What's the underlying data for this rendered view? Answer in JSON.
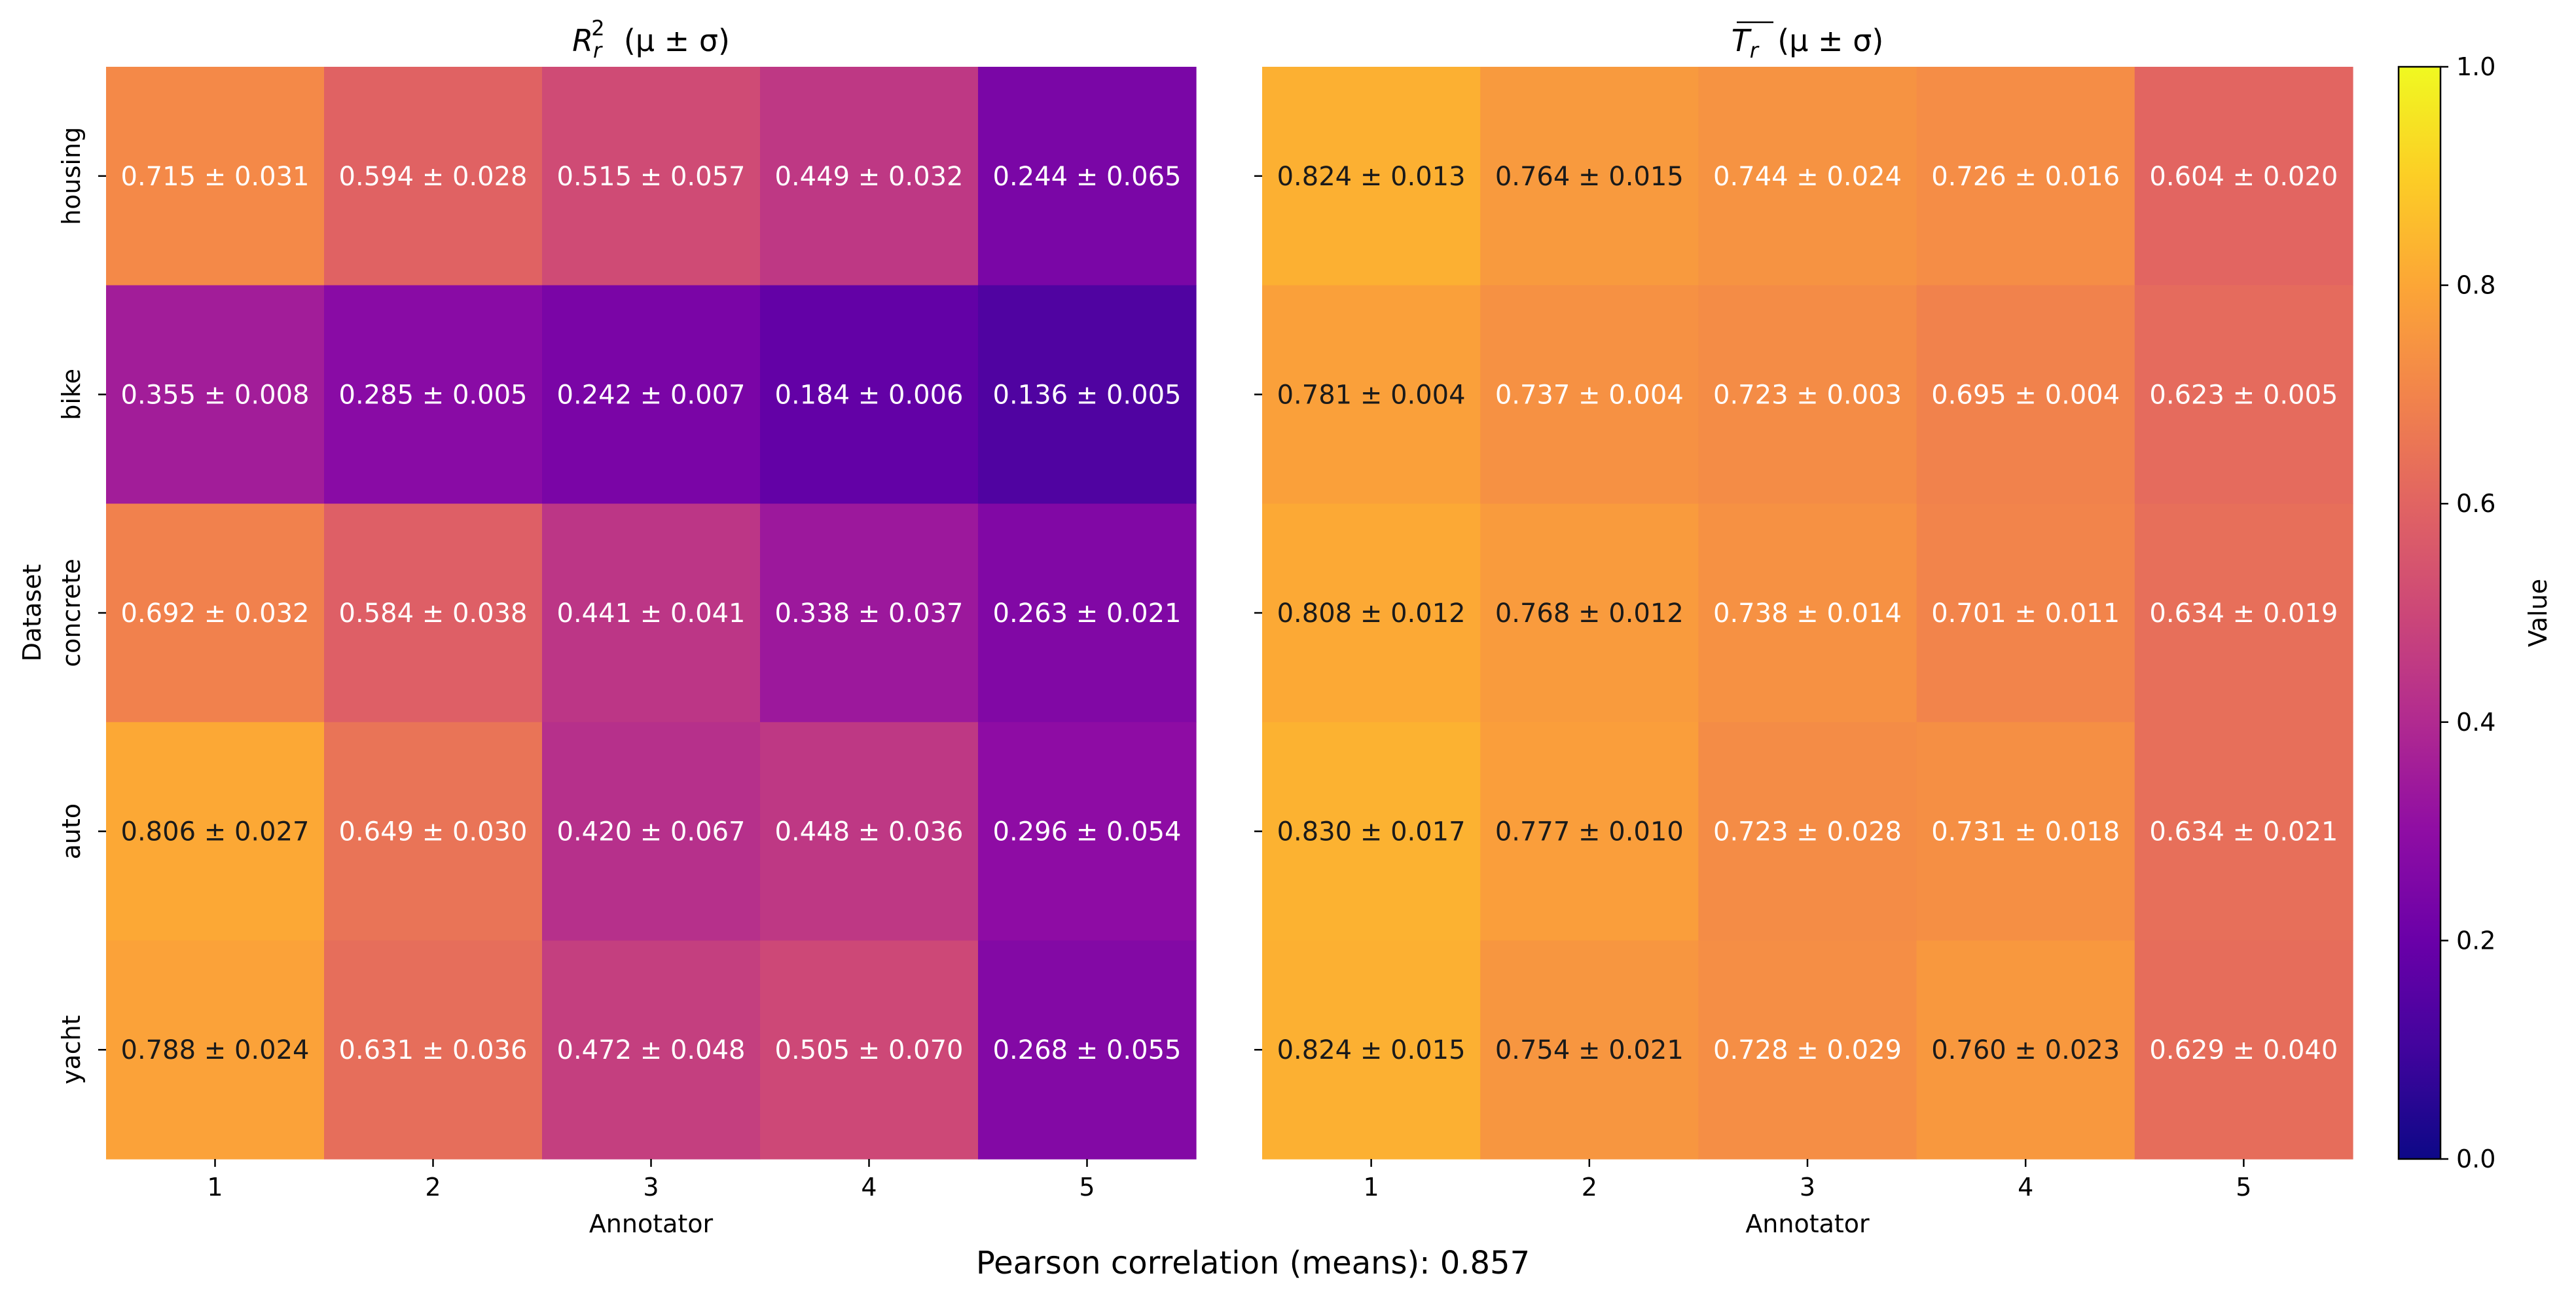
{
  "chart_data": [
    {
      "type": "heatmap",
      "title_main": "R",
      "title_sup": "2",
      "title_sub": "r",
      "title_suffix": "(μ ± σ)",
      "xlabel": "Annotator",
      "ylabel": "Dataset",
      "x_categories": [
        "1",
        "2",
        "3",
        "4",
        "5"
      ],
      "y_categories": [
        "housing",
        "bike",
        "concrete",
        "auto",
        "yacht"
      ],
      "means": [
        [
          0.715,
          0.594,
          0.515,
          0.449,
          0.244
        ],
        [
          0.355,
          0.285,
          0.242,
          0.184,
          0.136
        ],
        [
          0.692,
          0.584,
          0.441,
          0.338,
          0.263
        ],
        [
          0.806,
          0.649,
          0.42,
          0.448,
          0.296
        ],
        [
          0.788,
          0.631,
          0.472,
          0.505,
          0.268
        ]
      ],
      "labels": [
        [
          "0.715 ± 0.031",
          "0.594 ± 0.028",
          "0.515 ± 0.057",
          "0.449 ± 0.032",
          "0.244 ± 0.065"
        ],
        [
          "0.355 ± 0.008",
          "0.285 ± 0.005",
          "0.242 ± 0.007",
          "0.184 ± 0.006",
          "0.136 ± 0.005"
        ],
        [
          "0.692 ± 0.032",
          "0.584 ± 0.038",
          "0.441 ± 0.041",
          "0.338 ± 0.037",
          "0.263 ± 0.021"
        ],
        [
          "0.806 ± 0.027",
          "0.649 ± 0.030",
          "0.420 ± 0.067",
          "0.448 ± 0.036",
          "0.296 ± 0.054"
        ],
        [
          "0.788 ± 0.024",
          "0.631 ± 0.036",
          "0.472 ± 0.048",
          "0.505 ± 0.070",
          "0.268 ± 0.055"
        ]
      ]
    },
    {
      "type": "heatmap",
      "title_main": "T",
      "title_sub": "r",
      "title_overline": true,
      "title_suffix": "(μ ± σ)",
      "xlabel": "Annotator",
      "x_categories": [
        "1",
        "2",
        "3",
        "4",
        "5"
      ],
      "y_categories": [
        "housing",
        "bike",
        "concrete",
        "auto",
        "yacht"
      ],
      "means": [
        [
          0.824,
          0.764,
          0.744,
          0.726,
          0.604
        ],
        [
          0.781,
          0.737,
          0.723,
          0.695,
          0.623
        ],
        [
          0.808,
          0.768,
          0.738,
          0.701,
          0.634
        ],
        [
          0.83,
          0.777,
          0.723,
          0.731,
          0.634
        ],
        [
          0.824,
          0.754,
          0.728,
          0.76,
          0.629
        ]
      ],
      "labels": [
        [
          "0.824 ± 0.013",
          "0.764 ± 0.015",
          "0.744 ± 0.024",
          "0.726 ± 0.016",
          "0.604 ± 0.020"
        ],
        [
          "0.781 ± 0.004",
          "0.737 ± 0.004",
          "0.723 ± 0.003",
          "0.695 ± 0.004",
          "0.623 ± 0.005"
        ],
        [
          "0.808 ± 0.012",
          "0.768 ± 0.012",
          "0.738 ± 0.014",
          "0.701 ± 0.011",
          "0.634 ± 0.019"
        ],
        [
          "0.830 ± 0.017",
          "0.777 ± 0.010",
          "0.723 ± 0.028",
          "0.731 ± 0.018",
          "0.634 ± 0.021"
        ],
        [
          "0.824 ± 0.015",
          "0.754 ± 0.021",
          "0.728 ± 0.029",
          "0.760 ± 0.023",
          "0.629 ± 0.040"
        ]
      ]
    }
  ],
  "colorbar": {
    "label": "Value",
    "vmin": 0.0,
    "vmax": 1.0,
    "ticks": [
      "0.0",
      "0.2",
      "0.4",
      "0.6",
      "0.8",
      "1.0"
    ],
    "colormap": "plasma"
  },
  "footer": "Pearson correlation (means): 0.857"
}
